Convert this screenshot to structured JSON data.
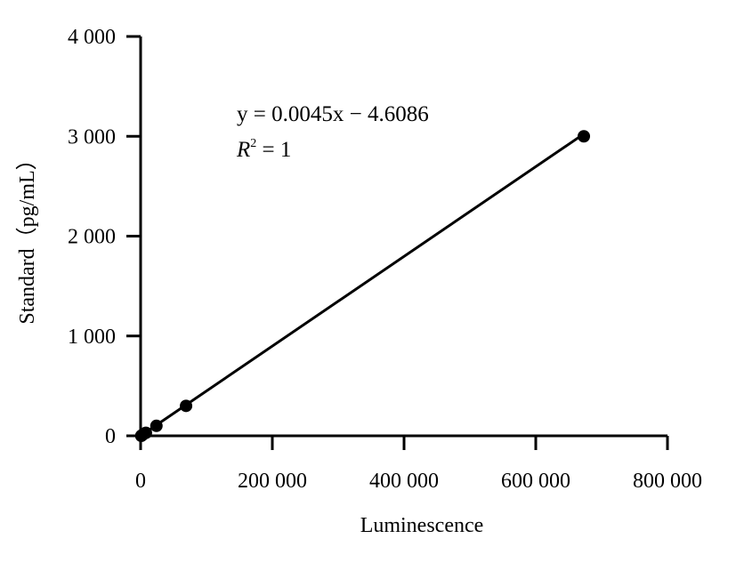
{
  "chart_data": {
    "type": "scatter",
    "xlabel": "Luminescence",
    "ylabel": "Standard（pg/mL）",
    "xlim": [
      0,
      800000
    ],
    "ylim": [
      0,
      4000
    ],
    "x_ticks": [
      0,
      200000,
      400000,
      600000,
      800000
    ],
    "x_tick_labels": [
      "0",
      "200 000",
      "400 000",
      "600 000",
      "800 000"
    ],
    "y_ticks": [
      0,
      1000,
      2000,
      3000,
      4000
    ],
    "y_tick_labels": [
      "0",
      "1 000",
      "2 000",
      "3 000",
      "4 000"
    ],
    "grid": false,
    "legend": "none",
    "points": [
      {
        "x": 1000,
        "y": 0
      },
      {
        "x": 3000,
        "y": 10
      },
      {
        "x": 8000,
        "y": 30
      },
      {
        "x": 24000,
        "y": 100
      },
      {
        "x": 69000,
        "y": 300
      },
      {
        "x": 673000,
        "y": 3000
      }
    ],
    "fit_line": {
      "slope": 0.0045,
      "intercept": -4.6086,
      "x_range": [
        0,
        673000
      ]
    },
    "annotations": {
      "equation": "y = 0.0045x − 4.6086",
      "r2_symbol": "R",
      "r2_exp": "2",
      "r2_value": " = 1"
    },
    "colors": {
      "marker": "#000000",
      "line": "#000000",
      "axis": "#000000"
    }
  }
}
